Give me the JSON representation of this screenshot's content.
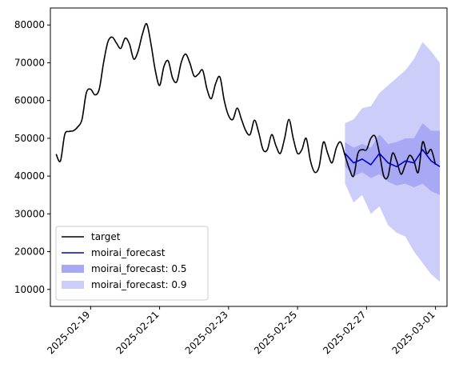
{
  "chart_data": {
    "type": "line",
    "y_ticks": [
      10000,
      20000,
      30000,
      40000,
      50000,
      60000,
      70000,
      80000
    ],
    "ylim": [
      5500,
      84500
    ],
    "xlim": [
      "2025-02-17T20:00",
      "2025-03-01T08:00"
    ],
    "x_ticks": [
      {
        "label": "2025-02-19",
        "t": "2025-02-19T00:00"
      },
      {
        "label": "2025-02-21",
        "t": "2025-02-21T00:00"
      },
      {
        "label": "2025-02-23",
        "t": "2025-02-23T00:00"
      },
      {
        "label": "2025-02-25",
        "t": "2025-02-25T00:00"
      },
      {
        "label": "2025-02-27",
        "t": "2025-02-27T00:00"
      },
      {
        "label": "2025-03-01",
        "t": "2025-03-01T00:00"
      }
    ],
    "grid": false,
    "legend_position": "lower-left",
    "colors": {
      "target": "#000000",
      "forecast": "#0000cc",
      "band50": "#a8a8f4",
      "band90": "#cdcdfa"
    },
    "series": [
      {
        "name": "target",
        "x": [
          "2025-02-18T00:00",
          "2025-02-18T03:00",
          "2025-02-18T06:00",
          "2025-02-18T09:00",
          "2025-02-18T12:00",
          "2025-02-18T15:00",
          "2025-02-18T18:00",
          "2025-02-18T21:00",
          "2025-02-19T00:00",
          "2025-02-19T03:00",
          "2025-02-19T06:00",
          "2025-02-19T09:00",
          "2025-02-19T12:00",
          "2025-02-19T15:00",
          "2025-02-19T18:00",
          "2025-02-19T21:00",
          "2025-02-20T00:00",
          "2025-02-20T03:00",
          "2025-02-20T06:00",
          "2025-02-20T09:00",
          "2025-02-20T12:00",
          "2025-02-20T15:00",
          "2025-02-20T18:00",
          "2025-02-20T21:00",
          "2025-02-21T00:00",
          "2025-02-21T03:00",
          "2025-02-21T06:00",
          "2025-02-21T09:00",
          "2025-02-21T12:00",
          "2025-02-21T15:00",
          "2025-02-21T18:00",
          "2025-02-21T21:00",
          "2025-02-22T00:00",
          "2025-02-22T03:00",
          "2025-02-22T06:00",
          "2025-02-22T09:00",
          "2025-02-22T12:00",
          "2025-02-22T15:00",
          "2025-02-22T18:00",
          "2025-02-22T21:00",
          "2025-02-23T00:00",
          "2025-02-23T03:00",
          "2025-02-23T06:00",
          "2025-02-23T09:00",
          "2025-02-23T12:00",
          "2025-02-23T15:00",
          "2025-02-23T18:00",
          "2025-02-23T21:00",
          "2025-02-24T00:00",
          "2025-02-24T03:00",
          "2025-02-24T06:00",
          "2025-02-24T09:00",
          "2025-02-24T12:00",
          "2025-02-24T15:00",
          "2025-02-24T18:00",
          "2025-02-24T21:00",
          "2025-02-25T00:00",
          "2025-02-25T03:00",
          "2025-02-25T06:00",
          "2025-02-25T09:00",
          "2025-02-25T12:00",
          "2025-02-25T15:00",
          "2025-02-25T18:00",
          "2025-02-25T21:00",
          "2025-02-26T00:00",
          "2025-02-26T03:00",
          "2025-02-26T06:00",
          "2025-02-26T09:00",
          "2025-02-26T12:00",
          "2025-02-26T15:00",
          "2025-02-26T18:00",
          "2025-02-26T21:00",
          "2025-02-27T00:00",
          "2025-02-27T03:00",
          "2025-02-27T06:00",
          "2025-02-27T09:00",
          "2025-02-27T12:00",
          "2025-02-27T15:00",
          "2025-02-27T18:00",
          "2025-02-27T21:00",
          "2025-02-28T00:00",
          "2025-02-28T03:00",
          "2025-02-28T06:00",
          "2025-02-28T09:00",
          "2025-02-28T12:00",
          "2025-02-28T15:00",
          "2025-02-28T18:00",
          "2025-02-28T21:00",
          "2025-03-01T00:00"
        ],
        "y": [
          45800,
          44000,
          51000,
          51800,
          52000,
          53000,
          55000,
          62000,
          63000,
          61500,
          63000,
          70000,
          75500,
          76800,
          75200,
          73800,
          76500,
          75000,
          71000,
          73000,
          77500,
          80300,
          75000,
          68000,
          64000,
          69000,
          70500,
          66000,
          65000,
          70000,
          72300,
          70000,
          66500,
          67000,
          68000,
          63000,
          60500,
          64500,
          66200,
          60000,
          56000,
          55000,
          58000,
          55000,
          52000,
          51000,
          54800,
          51500,
          47000,
          47000,
          51000,
          48000,
          46000,
          50000,
          55000,
          50000,
          46000,
          47000,
          50000,
          44000,
          41000,
          42500,
          49000,
          46000,
          43500,
          47500,
          49000,
          45500,
          42000,
          40000,
          46000,
          47000,
          47000,
          50000,
          50500,
          46000,
          40000,
          40000,
          46000,
          44000,
          40500,
          43000,
          45500,
          44000,
          41000,
          49000,
          46000,
          47000,
          43000
        ]
      },
      {
        "name": "moirai_forecast",
        "x": [
          "2025-02-26T09:00",
          "2025-02-26T15:00",
          "2025-02-26T21:00",
          "2025-02-27T03:00",
          "2025-02-27T09:00",
          "2025-02-27T15:00",
          "2025-02-27T21:00",
          "2025-02-28T03:00",
          "2025-02-28T09:00",
          "2025-02-28T15:00",
          "2025-02-28T21:00",
          "2025-03-01T03:00"
        ],
        "y": [
          46000,
          43500,
          44500,
          43000,
          46000,
          43500,
          42500,
          44000,
          43500,
          47000,
          44000,
          42500
        ]
      }
    ],
    "bands": [
      {
        "name": "moirai_forecast: 0.5",
        "x": [
          "2025-02-26T09:00",
          "2025-02-26T15:00",
          "2025-02-26T21:00",
          "2025-02-27T03:00",
          "2025-02-27T09:00",
          "2025-02-27T15:00",
          "2025-02-27T21:00",
          "2025-02-28T03:00",
          "2025-02-28T09:00",
          "2025-02-28T15:00",
          "2025-02-28T21:00",
          "2025-03-01T03:00"
        ],
        "lower": [
          42500,
          40000,
          41000,
          39500,
          40500,
          38500,
          37500,
          38000,
          37000,
          38000,
          36000,
          35000
        ],
        "upper": [
          49000,
          47500,
          48500,
          47500,
          51000,
          48500,
          49000,
          50000,
          50000,
          54000,
          52000,
          52000
        ]
      },
      {
        "name": "moirai_forecast: 0.9",
        "x": [
          "2025-02-26T09:00",
          "2025-02-26T15:00",
          "2025-02-26T21:00",
          "2025-02-27T03:00",
          "2025-02-27T09:00",
          "2025-02-27T15:00",
          "2025-02-27T21:00",
          "2025-02-28T03:00",
          "2025-02-28T09:00",
          "2025-02-28T15:00",
          "2025-02-28T21:00",
          "2025-03-01T03:00"
        ],
        "lower": [
          38000,
          33000,
          35000,
          30000,
          32000,
          27000,
          25000,
          24000,
          20000,
          17000,
          14000,
          12000
        ],
        "upper": [
          54000,
          55000,
          58000,
          58500,
          62000,
          64000,
          66000,
          68000,
          71000,
          75500,
          73000,
          70000
        ]
      }
    ]
  }
}
